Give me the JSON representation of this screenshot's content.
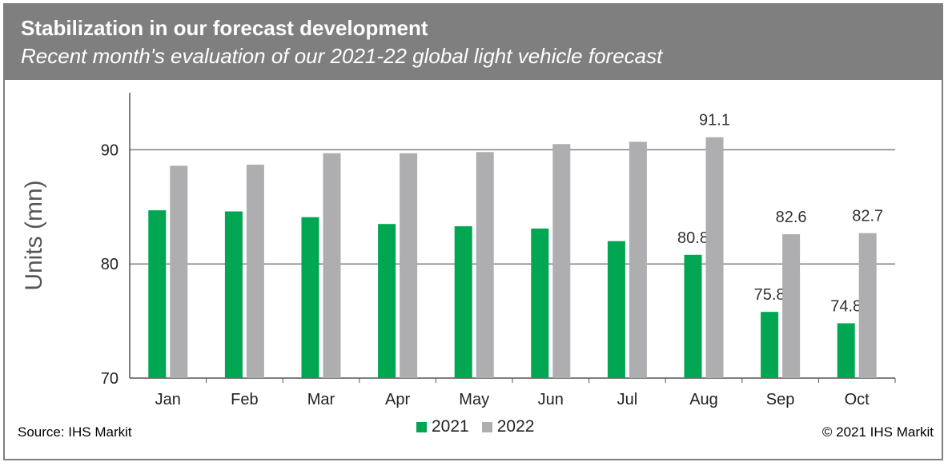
{
  "header": {
    "title": "Stabilization in our forecast development",
    "subtitle": "Recent month's evaluation of our 2021-22 global light vehicle forecast"
  },
  "footer": {
    "source": "Source: IHS Markit",
    "copyright": "© 2021 IHS Markit"
  },
  "colors": {
    "series_2021": "#00a651",
    "series_2022": "#aeaeb0",
    "header_bg": "#7f7f7f"
  },
  "chart_data": {
    "type": "bar",
    "ylabel": "Units (mn)",
    "xlabel": "",
    "ylim": [
      70,
      95
    ],
    "yticks": [
      70,
      80,
      90
    ],
    "grid": true,
    "legend_position": "bottom",
    "categories": [
      "Jan",
      "Feb",
      "Mar",
      "Apr",
      "May",
      "Jun",
      "Jul",
      "Aug",
      "Sep",
      "Oct"
    ],
    "series": [
      {
        "name": "2021",
        "values": [
          84.7,
          84.6,
          84.1,
          83.5,
          83.3,
          83.1,
          82.0,
          80.8,
          75.8,
          74.8
        ],
        "labels": [
          null,
          null,
          null,
          null,
          null,
          null,
          null,
          "80.8",
          "75.8",
          "74.8"
        ]
      },
      {
        "name": "2022",
        "values": [
          88.6,
          88.7,
          89.7,
          89.7,
          89.8,
          90.5,
          90.7,
          91.1,
          82.6,
          82.7
        ],
        "labels": [
          null,
          null,
          null,
          null,
          null,
          null,
          null,
          "91.1",
          "82.6",
          "82.7"
        ]
      }
    ]
  }
}
